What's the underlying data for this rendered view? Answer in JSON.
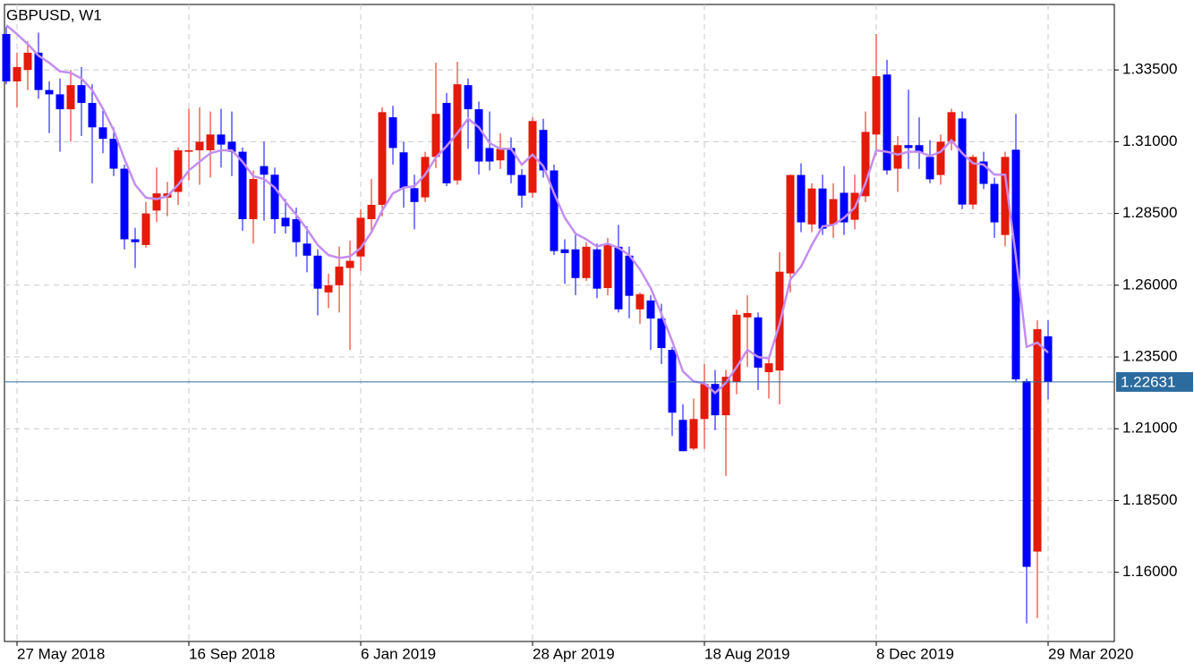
{
  "chart_data": {
    "type": "candlestick",
    "title": "GBPUSD, W1",
    "categories": [
      null,
      "27 May 2018",
      null,
      null,
      null,
      null,
      null,
      null,
      null,
      null,
      null,
      null,
      null,
      null,
      null,
      null,
      null,
      "16 Sep 2018",
      null,
      null,
      null,
      null,
      null,
      null,
      null,
      null,
      null,
      null,
      null,
      null,
      null,
      null,
      null,
      "6 Jan 2019",
      null,
      null,
      null,
      null,
      null,
      null,
      null,
      null,
      null,
      null,
      null,
      null,
      null,
      null,
      null,
      "28 Apr 2019",
      null,
      null,
      null,
      null,
      null,
      null,
      null,
      null,
      null,
      null,
      null,
      null,
      null,
      null,
      null,
      "18 Aug 2019",
      null,
      null,
      null,
      null,
      null,
      null,
      null,
      null,
      null,
      null,
      null,
      null,
      null,
      null,
      null,
      "8 Dec 2019",
      null,
      null,
      null,
      null,
      null,
      null,
      null,
      null,
      null,
      null,
      null,
      null,
      null,
      null,
      null,
      "29 Mar 2020"
    ],
    "open": [
      1.3475,
      1.331,
      1.335,
      1.341,
      1.328,
      1.3265,
      1.3213,
      1.3297,
      1.3235,
      1.315,
      1.311,
      1.3006,
      1.276,
      1.274,
      1.286,
      1.2905,
      1.2925,
      1.3065,
      1.307,
      1.307,
      1.3125,
      1.31,
      1.3065,
      1.283,
      1.3015,
      1.2985,
      1.2835,
      1.283,
      1.2745,
      1.2703,
      1.2575,
      1.26,
      1.266,
      1.27,
      1.283,
      1.288,
      1.3185,
      1.3063,
      1.2938,
      1.2906,
      1.3047,
      1.3235,
      1.2965,
      1.3297,
      1.3213,
      1.3078,
      1.3035,
      1.3078,
      1.2984,
      1.2922,
      1.3141,
      1.3,
      1.2725,
      1.2725,
      1.2625,
      1.2725,
      1.259,
      1.2734,
      1.2703,
      1.2516,
      1.2547,
      1.2484,
      1.2375,
      1.2131,
      1.2031,
      1.2134,
      1.2256,
      1.2147,
      1.2263,
      1.2488,
      1.2488,
      1.2297,
      1.2303,
      1.2641,
      1.2984,
      1.2812,
      1.2937,
      1.2812,
      1.2922,
      1.2828,
      1.291,
      1.3125,
      1.3334,
      1.3006,
      1.3088,
      1.3088,
      1.3047,
      1.2984,
      1.31,
      1.3181,
      1.2881,
      1.3031,
      1.2953,
      1.2775,
      1.3072,
      1.2266,
      1.1672,
      1.2422
    ],
    "high": [
      1.35,
      1.341,
      1.345,
      1.348,
      1.331,
      1.332,
      1.335,
      1.336,
      1.33,
      1.322,
      1.315,
      1.302,
      1.28,
      1.289,
      1.301,
      1.296,
      1.308,
      1.3215,
      1.322,
      1.3205,
      1.3215,
      1.3205,
      1.308,
      1.3,
      1.31,
      1.301,
      1.29,
      1.287,
      1.2805,
      1.2725,
      1.264,
      1.2735,
      1.2755,
      1.2865,
      1.297,
      1.322,
      1.3225,
      1.31,
      1.2985,
      1.3065,
      1.3375,
      1.327,
      1.3378,
      1.332,
      1.324,
      1.3205,
      1.313,
      1.3115,
      1.3005,
      1.3185,
      1.318,
      1.302,
      1.276,
      1.2775,
      1.275,
      1.2745,
      1.2765,
      1.281,
      1.2735,
      1.2575,
      1.2565,
      1.2535,
      1.2385,
      1.2185,
      1.2205,
      1.2325,
      1.2305,
      1.2305,
      1.2515,
      1.2565,
      1.2505,
      1.2345,
      1.2715,
      1.2985,
      1.3025,
      1.2955,
      1.2985,
      1.2955,
      1.3015,
      1.2985,
      1.3205,
      1.3475,
      1.3385,
      1.312,
      1.3281,
      1.3185,
      1.3105,
      1.3125,
      1.3215,
      1.3205,
      1.3055,
      1.3065,
      1.2975,
      1.3065,
      1.3197,
      1.2275,
      1.2478,
      1.2478
    ],
    "low": [
      1.33,
      1.322,
      1.328,
      1.325,
      1.313,
      1.3065,
      1.31,
      1.312,
      1.2955,
      1.306,
      1.298,
      1.2725,
      1.266,
      1.273,
      1.282,
      1.284,
      1.288,
      1.2965,
      1.295,
      1.2975,
      1.301,
      1.298,
      1.279,
      1.2745,
      1.2825,
      1.278,
      1.278,
      1.27,
      1.2645,
      1.2495,
      1.252,
      1.2505,
      1.2375,
      1.265,
      1.278,
      1.284,
      1.302,
      1.287,
      1.2795,
      1.289,
      1.3008,
      1.2945,
      1.295,
      1.3075,
      1.2985,
      1.3,
      1.3005,
      1.2955,
      1.287,
      1.2905,
      1.2975,
      1.2705,
      1.2605,
      1.2565,
      1.2615,
      1.2555,
      1.2565,
      1.2505,
      1.2485,
      1.2465,
      1.2375,
      1.2325,
      1.2075,
      1.2022,
      1.2025,
      1.203,
      1.2095,
      1.1935,
      1.222,
      1.2315,
      1.2235,
      1.2205,
      1.2185,
      1.2575,
      1.2785,
      1.2785,
      1.2775,
      1.2765,
      1.2775,
      1.2795,
      1.289,
      1.3055,
      1.2985,
      1.2925,
      1.3005,
      1.3005,
      1.2955,
      1.295,
      1.307,
      1.2865,
      1.2865,
      1.2935,
      1.2765,
      1.2735,
      1.2265,
      1.1422,
      1.1441,
      1.2203
    ],
    "close": [
      1.331,
      1.336,
      1.341,
      1.328,
      1.3265,
      1.3213,
      1.3297,
      1.3235,
      1.315,
      1.311,
      1.3006,
      1.276,
      1.275,
      1.285,
      1.292,
      1.292,
      1.307,
      1.307,
      1.31,
      1.3125,
      1.309,
      1.3065,
      1.283,
      1.297,
      1.2985,
      1.283,
      1.2805,
      1.275,
      1.2703,
      1.2588,
      1.26,
      1.2665,
      1.2685,
      1.2835,
      1.288,
      1.3203,
      1.3078,
      1.2938,
      1.289,
      1.3047,
      1.3197,
      1.2955,
      1.33,
      1.3213,
      1.3031,
      1.3031,
      1.3075,
      1.2984,
      1.2912,
      1.3172,
      1.3,
      1.2719,
      1.2712,
      1.2625,
      1.2734,
      1.2588,
      1.2744,
      1.2516,
      1.2563,
      1.2569,
      1.2484,
      1.2381,
      1.2156,
      1.2022,
      1.2134,
      1.2256,
      1.2147,
      1.2281,
      1.2497,
      1.2503,
      1.2313,
      1.2328,
      1.2647,
      1.2984,
      1.2819,
      1.2937,
      1.2797,
      1.29,
      1.2819,
      1.2922,
      1.3134,
      1.3328,
      1.3,
      1.3088,
      1.3078,
      1.3063,
      1.2969,
      1.31,
      1.3203,
      1.2881,
      1.3047,
      1.2953,
      1.2819,
      1.3047,
      1.2272,
      1.1619,
      1.2447,
      1.2263
    ],
    "up_color": "#e41a0a",
    "down_color": "#0000ff",
    "moving_average": {
      "color": "#c38ef0",
      "values": [
        1.3506,
        1.3475,
        1.344,
        1.34,
        1.3375,
        1.3345,
        1.334,
        1.332,
        1.328,
        1.3215,
        1.314,
        1.304,
        1.295,
        1.2905,
        1.29,
        1.291,
        1.295,
        1.3,
        1.303,
        1.306,
        1.307,
        1.307,
        1.303,
        1.298,
        1.297,
        1.294,
        1.289,
        1.2845,
        1.2795,
        1.274,
        1.2705,
        1.2695,
        1.27,
        1.273,
        1.2785,
        1.286,
        1.292,
        1.294,
        1.2945,
        1.2985,
        1.3045,
        1.3085,
        1.313,
        1.318,
        1.315,
        1.3095,
        1.3075,
        1.3075,
        1.302,
        1.3055,
        1.3015,
        1.292,
        1.2835,
        1.278,
        1.276,
        1.2735,
        1.2745,
        1.273,
        1.2705,
        1.2655,
        1.259,
        1.25,
        1.2405,
        1.23,
        1.2265,
        1.2258,
        1.2225,
        1.226,
        1.2315,
        1.2375,
        1.235,
        1.2345,
        1.2465,
        1.262,
        1.2665,
        1.274,
        1.2805,
        1.281,
        1.2835,
        1.287,
        1.2955,
        1.307,
        1.3065,
        1.3055,
        1.3065,
        1.3065,
        1.305,
        1.3065,
        1.3105,
        1.306,
        1.3025,
        1.302,
        1.2985,
        1.2985,
        1.27,
        1.2385,
        1.24,
        1.2365
      ]
    },
    "current_price": 1.22631,
    "current_price_color": "#2c6b9e",
    "ylim": [
      1.1359,
      1.3578
    ],
    "yticks": [
      {
        "value": 1.16,
        "label": "1.16000"
      },
      {
        "value": 1.185,
        "label": "1.18500"
      },
      {
        "value": 1.21,
        "label": "1.21000"
      },
      {
        "value": 1.235,
        "label": "1.23500"
      },
      {
        "value": 1.26,
        "label": "1.26000"
      },
      {
        "value": 1.285,
        "label": "1.28500"
      },
      {
        "value": 1.31,
        "label": "1.31000"
      },
      {
        "value": 1.335,
        "label": "1.33500"
      }
    ],
    "grid": true
  }
}
